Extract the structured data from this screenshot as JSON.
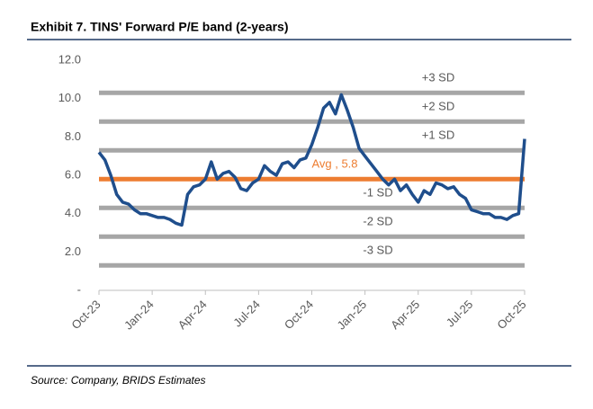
{
  "chart_data": {
    "type": "line",
    "title": "Exhibit 7. TINS' Forward P/E band (2-years)",
    "source": "Source: Company, BRIDS Estimates",
    "categories": [
      "Oct-23",
      null,
      null,
      null,
      null,
      null,
      null,
      null,
      null,
      "Jan-24",
      null,
      null,
      null,
      null,
      null,
      null,
      null,
      null,
      "Apr-24",
      null,
      null,
      null,
      null,
      null,
      null,
      null,
      null,
      "Jul-24",
      null,
      null,
      null,
      null,
      null,
      null,
      null,
      null,
      "Oct-24",
      null,
      null,
      null,
      null,
      null,
      null,
      null,
      null,
      "Jan-25",
      null,
      null,
      null,
      null,
      null,
      null,
      null,
      null,
      "Apr-25",
      null,
      null,
      null,
      null,
      null,
      null,
      null,
      null,
      "Jul-25",
      null,
      null,
      null,
      null,
      null,
      null,
      null,
      null,
      "Oct-25"
    ],
    "series": [
      {
        "color": "#1f4e8c",
        "values": [
          7.2,
          6.8,
          6.0,
          5.0,
          4.6,
          4.5,
          4.2,
          4.0,
          4.0,
          3.9,
          3.8,
          3.8,
          3.7,
          3.5,
          3.4,
          5.0,
          5.4,
          5.5,
          5.8,
          6.7,
          5.8,
          6.1,
          6.2,
          5.9,
          5.3,
          5.2,
          5.6,
          5.8,
          6.5,
          6.2,
          6.0,
          6.6,
          6.7,
          6.4,
          6.8,
          6.9,
          7.6,
          8.5,
          9.5,
          9.8,
          9.2,
          10.2,
          9.4,
          8.5,
          7.4,
          7.0,
          6.6,
          6.2,
          5.8,
          5.5,
          5.8,
          5.2,
          5.5,
          5.0,
          4.6,
          5.2,
          5.0,
          5.6,
          5.5,
          5.3,
          5.4,
          5.0,
          4.8,
          4.2,
          4.1,
          4.0,
          4.0,
          3.8,
          3.8,
          3.7,
          3.9,
          4.0,
          7.9
        ]
      }
    ],
    "avg": {
      "label": "Avg , 5.8",
      "value": 5.8,
      "color": "#ed7d31"
    },
    "bands": [
      {
        "label": "+3 SD",
        "value": 10.3
      },
      {
        "label": "+2 SD",
        "value": 8.8
      },
      {
        "label": "+1 SD",
        "value": 7.3
      },
      {
        "label": "-1 SD",
        "value": 4.3
      },
      {
        "label": "-2 SD",
        "value": 2.8
      },
      {
        "label": "-3 SD",
        "value": 1.3
      }
    ],
    "band_color": "#a6a6a6",
    "ylim": [
      0,
      12
    ],
    "yticks": [
      {
        "value": 0,
        "label": "-"
      },
      {
        "value": 2,
        "label": "2.0"
      },
      {
        "value": 4,
        "label": "4.0"
      },
      {
        "value": 6,
        "label": "6.0"
      },
      {
        "value": 8,
        "label": "8.0"
      },
      {
        "value": 10,
        "label": "10.0"
      },
      {
        "value": 12,
        "label": "12.0"
      }
    ]
  }
}
